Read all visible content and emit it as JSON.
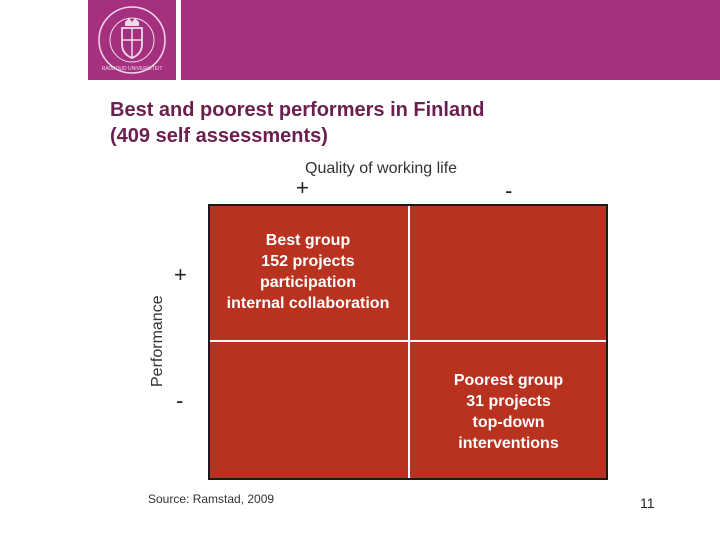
{
  "header": {
    "brand_color": "#a4307f",
    "logo_icon": "university-seal-icon",
    "logo_text": "RADBOUD UNIVERSITEIT NIJMEGEN"
  },
  "slide": {
    "title_line1": "Best and poorest performers in Finland",
    "title_line2": "(409 self assessments)",
    "x_axis_label": "Quality of working life",
    "x_plus": "+",
    "x_minus": "-",
    "y_axis_label": "Performance",
    "y_plus": "+",
    "y_minus": "-",
    "best_group": [
      "Best group",
      "152 projects",
      "participation",
      "internal collaboration"
    ],
    "poorest_group": [
      "Poorest group",
      "31 projects",
      "top-down",
      "interventions"
    ],
    "source": "Source: Ramstad, 2009",
    "page_number": "11",
    "grid_color": "#b8321f"
  }
}
